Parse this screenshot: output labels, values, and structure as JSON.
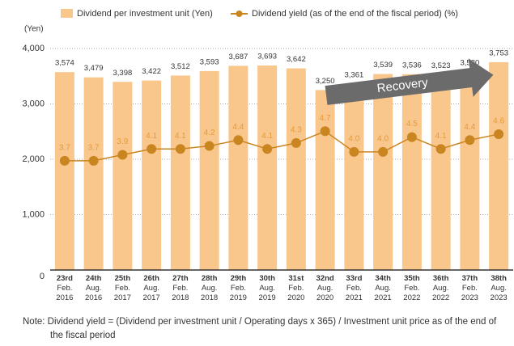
{
  "chart_data": {
    "type": "bar_line",
    "categories": [
      "23rd Feb. 2016",
      "24th Aug. 2016",
      "25th Feb. 2017",
      "26th Aug. 2017",
      "27th Feb. 2018",
      "28th Aug. 2018",
      "29th Feb. 2019",
      "30th Aug. 2019",
      "31st Feb. 2020",
      "32nd Aug. 2020",
      "33rd Feb. 2021",
      "34th Aug. 2021",
      "35th Feb. 2022",
      "36th Aug. 2022",
      "37th Feb. 2023",
      "38th Aug. 2023"
    ],
    "series": [
      {
        "name": "Dividend per investment unit (Yen)",
        "type": "bar",
        "color": "#f9c68c",
        "values": [
          3574,
          3479,
          3398,
          3422,
          3512,
          3593,
          3687,
          3693,
          3642,
          3250,
          3361,
          3539,
          3536,
          3523,
          3580,
          3753
        ],
        "value_labels": [
          "3,574",
          "3,479",
          "3,398",
          "3,422",
          "3,512",
          "3,593",
          "3,687",
          "3,693",
          "3,642",
          "3,250",
          "3,361",
          "3,539",
          "3,536",
          "3,523",
          "3,580",
          "3,753"
        ]
      },
      {
        "name": "Dividend yield (as of the end of the fiscal period) (%)",
        "type": "line",
        "axis": "y2",
        "color": "#c98520",
        "values": [
          3.7,
          3.7,
          3.9,
          4.1,
          4.1,
          4.2,
          4.4,
          4.1,
          4.3,
          4.7,
          4.0,
          4.0,
          4.5,
          4.1,
          4.4,
          4.6
        ],
        "value_labels": [
          "3.7",
          "3.7",
          "3.9",
          "4.1",
          "4.1",
          "4.2",
          "4.4",
          "4.1",
          "4.3",
          "4.7",
          "4.0",
          "4.0",
          "4.5",
          "4.1",
          "4.4",
          "4.6"
        ]
      }
    ],
    "y_label": "(Yen)",
    "ylim": [
      0,
      4000
    ],
    "yticks": [
      {
        "value": 0,
        "label": "0"
      },
      {
        "value": 1000,
        "label": "1,000"
      },
      {
        "value": 2000,
        "label": "2,000"
      },
      {
        "value": 3000,
        "label": "3,000"
      },
      {
        "value": 4000,
        "label": "4,000"
      }
    ],
    "y2lim": [
      0,
      7.5
    ],
    "grid": true,
    "annotation": "Recovery",
    "note": "Note: Dividend yield = (Dividend per investment unit / Operating days x 365) / Investment unit price as of the end of the fiscal period"
  }
}
